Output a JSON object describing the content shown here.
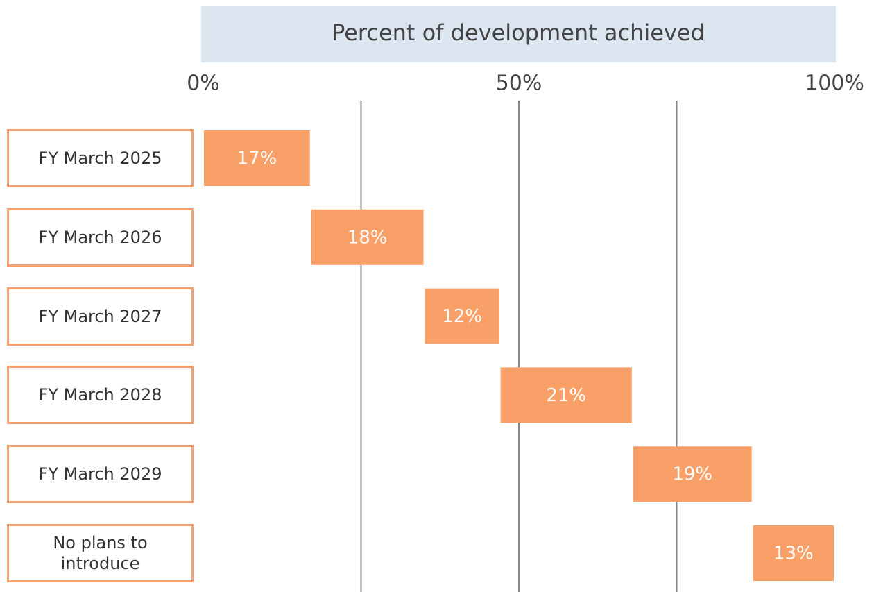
{
  "chart_data": {
    "type": "waterfall",
    "orientation": "horizontal",
    "title": "Percent of development achieved",
    "categories": [
      "FY March 2025",
      "FY March 2026",
      "FY March 2027",
      "FY March 2028",
      "FY March 2029",
      "No plans to introduce"
    ],
    "values": [
      17,
      18,
      12,
      21,
      19,
      13
    ],
    "value_labels": [
      "17%",
      "18%",
      "12%",
      "21%",
      "19%",
      "13%"
    ],
    "color": "#f9a068",
    "xlim": [
      0,
      100
    ],
    "xticks": [
      {
        "value": 0,
        "label": "0%"
      },
      {
        "value": 50,
        "label": "50%"
      },
      {
        "value": 100,
        "label": "100%"
      }
    ],
    "gridlines": [
      25,
      50,
      75
    ],
    "grid": true
  }
}
